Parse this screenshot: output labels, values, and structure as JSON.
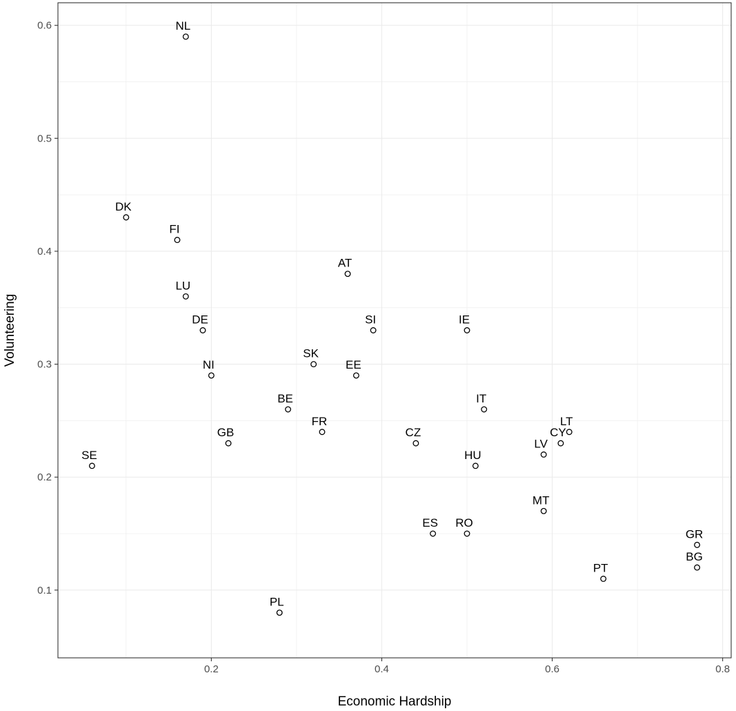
{
  "chart_data": {
    "type": "scatter",
    "title": "",
    "xlabel": "Economic Hardship",
    "ylabel": "Volunteering",
    "xlim": [
      0.02,
      0.81
    ],
    "ylim": [
      0.04,
      0.62
    ],
    "x_ticks": [
      0.2,
      0.4,
      0.6,
      0.8
    ],
    "x_tick_labels": [
      "0.2",
      "0.4",
      "0.6",
      "0.8"
    ],
    "x_minor_ticks": [
      0.1,
      0.3,
      0.5,
      0.7
    ],
    "y_ticks": [
      0.1,
      0.2,
      0.3,
      0.4,
      0.5,
      0.6
    ],
    "y_tick_labels": [
      "0.1",
      "0.2",
      "0.3",
      "0.4",
      "0.5",
      "0.6"
    ],
    "y_minor_ticks": [
      0.15,
      0.25,
      0.35,
      0.45,
      0.55
    ],
    "grid": true,
    "legend": "none",
    "marker": "open-circle",
    "points": [
      {
        "label": "NL",
        "x": 0.17,
        "y": 0.59
      },
      {
        "label": "DK",
        "x": 0.1,
        "y": 0.43
      },
      {
        "label": "FI",
        "x": 0.16,
        "y": 0.41
      },
      {
        "label": "AT",
        "x": 0.36,
        "y": 0.38
      },
      {
        "label": "LU",
        "x": 0.17,
        "y": 0.36
      },
      {
        "label": "DE",
        "x": 0.19,
        "y": 0.33
      },
      {
        "label": "SI",
        "x": 0.39,
        "y": 0.33
      },
      {
        "label": "IE",
        "x": 0.5,
        "y": 0.33
      },
      {
        "label": "SK",
        "x": 0.32,
        "y": 0.3
      },
      {
        "label": "NI",
        "x": 0.2,
        "y": 0.29
      },
      {
        "label": "EE",
        "x": 0.37,
        "y": 0.29
      },
      {
        "label": "BE",
        "x": 0.29,
        "y": 0.26
      },
      {
        "label": "IT",
        "x": 0.52,
        "y": 0.26
      },
      {
        "label": "FR",
        "x": 0.33,
        "y": 0.24
      },
      {
        "label": "LT",
        "x": 0.62,
        "y": 0.24
      },
      {
        "label": "GB",
        "x": 0.22,
        "y": 0.23
      },
      {
        "label": "CZ",
        "x": 0.44,
        "y": 0.23
      },
      {
        "label": "CY",
        "x": 0.61,
        "y": 0.23
      },
      {
        "label": "LV",
        "x": 0.59,
        "y": 0.22
      },
      {
        "label": "SE",
        "x": 0.06,
        "y": 0.21
      },
      {
        "label": "HU",
        "x": 0.51,
        "y": 0.21
      },
      {
        "label": "MT",
        "x": 0.59,
        "y": 0.17
      },
      {
        "label": "ES",
        "x": 0.46,
        "y": 0.15
      },
      {
        "label": "RO",
        "x": 0.5,
        "y": 0.15
      },
      {
        "label": "GR",
        "x": 0.77,
        "y": 0.14
      },
      {
        "label": "BG",
        "x": 0.77,
        "y": 0.12
      },
      {
        "label": "PT",
        "x": 0.66,
        "y": 0.11
      },
      {
        "label": "PL",
        "x": 0.28,
        "y": 0.08
      }
    ]
  }
}
